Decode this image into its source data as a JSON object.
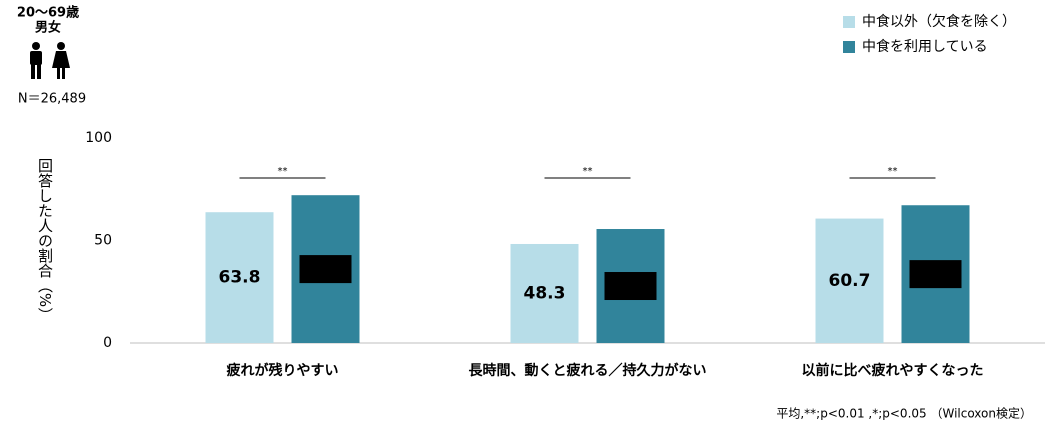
{
  "header": {
    "age": "20～69歳",
    "gender": "男女",
    "sample": "N＝26,489"
  },
  "chart_data": {
    "type": "bar",
    "y_label": "回答した人の割合（%）",
    "categories": [
      "疲れが残りやすい",
      "長時間、動くと疲れる／持久力がない",
      "以前に比べ疲れやすくなった"
    ],
    "series": [
      {
        "name": "中食以外（欠食を除く）",
        "color": "#b7dde8",
        "values": [
          63.8,
          48.3,
          60.7
        ]
      },
      {
        "name": "中食を利用している",
        "color": "#31849b",
        "values": [
          72.1,
          55.6,
          67.2
        ]
      }
    ],
    "significance": [
      "**",
      "**",
      "**"
    ],
    "ylim": [
      0,
      100
    ],
    "yticks": [
      0,
      50,
      100
    ],
    "grid": false,
    "legend": "top-right"
  },
  "footnote": "平均,**;p<0.01 ,*;p<0.05 （Wilcoxon検定）"
}
